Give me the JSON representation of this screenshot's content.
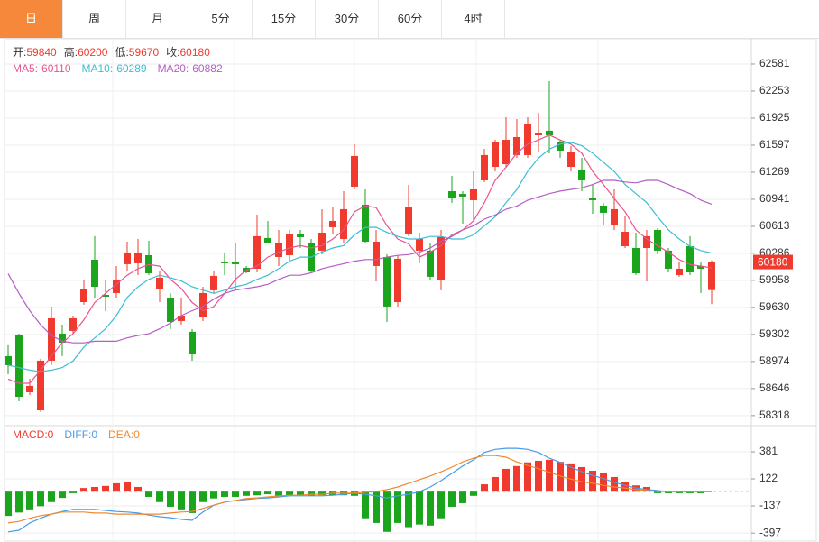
{
  "tabs": [
    "日",
    "周",
    "月",
    "5分",
    "15分",
    "30分",
    "60分",
    "4时"
  ],
  "active_tab": 0,
  "chart_data": [
    {
      "type": "candlestick",
      "info_labels": [
        "开:",
        "高:",
        "低:",
        "收:"
      ],
      "open": [
        59039,
        59290,
        58601,
        58382,
        58984,
        59312,
        59345,
        59694,
        60208,
        59782,
        59804,
        60154,
        60165,
        60263,
        59858,
        59749,
        59465,
        59334,
        59509,
        59837,
        60186,
        60186,
        60110,
        60099,
        60471,
        60241,
        60263,
        60525,
        60405,
        60318,
        60602,
        60460,
        61094,
        60875,
        60132,
        60241,
        59694,
        60514,
        60318,
        60318,
        59957,
        61039,
        61006,
        60930,
        61170,
        61334,
        61367,
        61477,
        61477,
        61717,
        61772,
        61640,
        61334,
        61302,
        60952,
        60864,
        60624,
        60372,
        60350,
        60350,
        60569,
        60318,
        60022,
        60372,
        60132,
        59840
      ],
      "high": [
        59170,
        59312,
        58765,
        59006,
        59640,
        59421,
        59530,
        59968,
        60493,
        59968,
        60132,
        60427,
        60460,
        60438,
        60077,
        59804,
        59749,
        59367,
        59880,
        60077,
        60296,
        60405,
        60132,
        60755,
        60678,
        60569,
        60569,
        60569,
        60460,
        60821,
        60842,
        61039,
        61608,
        61061,
        60569,
        60274,
        60263,
        61116,
        60536,
        60405,
        60569,
        61225,
        61039,
        61280,
        61553,
        61662,
        61936,
        61914,
        61936,
        61990,
        62373,
        61662,
        61586,
        61444,
        61116,
        60897,
        61061,
        60733,
        60536,
        60569,
        60591,
        60350,
        60186,
        60493,
        60186,
        60200
      ],
      "low": [
        58820,
        58492,
        58568,
        58361,
        58929,
        59039,
        59312,
        59662,
        59749,
        59585,
        59749,
        60077,
        60022,
        60022,
        59694,
        59367,
        59421,
        58984,
        59465,
        59804,
        60022,
        59858,
        60044,
        60055,
        60405,
        60132,
        60186,
        60350,
        60055,
        60274,
        60514,
        60405,
        61061,
        60405,
        59946,
        59454,
        59640,
        60493,
        60165,
        59968,
        59837,
        60897,
        60646,
        60678,
        61149,
        61280,
        61334,
        61444,
        61444,
        61520,
        61498,
        61444,
        61280,
        61039,
        60766,
        60624,
        60569,
        60350,
        60022,
        59946,
        60274,
        60055,
        60001,
        60022,
        59804,
        59670
      ],
      "close": [
        58929,
        58546,
        58678,
        58984,
        59498,
        59202,
        59498,
        59858,
        59880,
        59760,
        59968,
        60296,
        60296,
        60044,
        59990,
        59454,
        59530,
        59071,
        59804,
        60012,
        60165,
        60154,
        60055,
        60493,
        60416,
        60405,
        60514,
        60482,
        60077,
        60536,
        60678,
        60821,
        61466,
        60427,
        60427,
        59640,
        60219,
        60842,
        60460,
        60001,
        60482,
        60952,
        60974,
        61061,
        61477,
        61630,
        61662,
        61695,
        61848,
        61739,
        61717,
        61531,
        61520,
        61170,
        60930,
        60777,
        60821,
        60547,
        60044,
        60493,
        60318,
        60099,
        60099,
        60055,
        60099,
        60180
      ],
      "up_color": "#f03a2e",
      "down_color": "#1aa51c",
      "info_label_color": "#333333",
      "series": [
        {
          "name": "MA5:",
          "color": "#e8548f",
          "values": [
            58760,
            58710,
            58710,
            58870,
            59040,
            59200,
            59310,
            59480,
            59690,
            59800,
            59910,
            60020,
            60100,
            60150,
            60130,
            59970,
            59860,
            59690,
            59590,
            59640,
            59800,
            59970,
            60080,
            60130,
            60240,
            60300,
            60350,
            60380,
            60350,
            60380,
            60460,
            60570,
            60790,
            60860,
            60840,
            60620,
            60460,
            60400,
            60240,
            60300,
            60380,
            60510,
            60570,
            60680,
            60900,
            61170,
            61330,
            61500,
            61610,
            61660,
            61720,
            61660,
            61610,
            61500,
            61280,
            61120,
            60950,
            60790,
            60570,
            60460,
            60380,
            60300,
            60210,
            60150,
            60130,
            60110
          ]
        },
        {
          "name": "MA10:",
          "color": "#3cbdd4",
          "values": [
            58930,
            58900,
            58870,
            58850,
            58870,
            58900,
            58980,
            59150,
            59260,
            59370,
            59530,
            59750,
            59880,
            59970,
            60020,
            59990,
            59950,
            59880,
            59840,
            59800,
            59840,
            59880,
            59910,
            59970,
            60020,
            60100,
            60190,
            60240,
            60240,
            60300,
            60350,
            60380,
            60510,
            60600,
            60600,
            60540,
            60490,
            60460,
            60460,
            60490,
            60490,
            60460,
            60460,
            60510,
            60620,
            60730,
            60900,
            61060,
            61280,
            61440,
            61550,
            61610,
            61630,
            61590,
            61500,
            61390,
            61280,
            61120,
            61010,
            60900,
            60730,
            60570,
            60460,
            60370,
            60320,
            60289
          ]
        },
        {
          "name": "MA20:",
          "color": "#b45ec4",
          "values": [
            60040,
            59800,
            59590,
            59420,
            59290,
            59220,
            59200,
            59200,
            59220,
            59220,
            59220,
            59260,
            59290,
            59310,
            59370,
            59440,
            59530,
            59590,
            59640,
            59730,
            59800,
            59840,
            59860,
            59880,
            59910,
            59970,
            60020,
            60020,
            60050,
            60100,
            60130,
            60160,
            60190,
            60210,
            60210,
            60240,
            60260,
            60270,
            60300,
            60350,
            60430,
            60490,
            60570,
            60620,
            60700,
            60750,
            60820,
            60860,
            60930,
            60970,
            61010,
            61040,
            61060,
            61080,
            61120,
            61170,
            61170,
            61150,
            61140,
            61170,
            61170,
            61120,
            61060,
            61010,
            60930,
            60882
          ]
        }
      ],
      "ylim": [
        58218,
        62865
      ],
      "yticks": [
        62581,
        62253,
        61925,
        61597,
        61269,
        60941,
        60613,
        60286,
        59958,
        59630,
        59302,
        58974,
        58646,
        58318
      ],
      "grid": true
    },
    {
      "type": "macd",
      "bar_name": "MACD:",
      "values": [
        -233,
        -200,
        -170,
        -140,
        -100,
        -60,
        -15,
        35,
        45,
        55,
        80,
        95,
        45,
        -50,
        -100,
        -145,
        -170,
        -205,
        -100,
        -65,
        -50,
        -50,
        -40,
        -35,
        -25,
        -40,
        -40,
        -40,
        -40,
        -35,
        -35,
        -35,
        -40,
        -255,
        -300,
        -385,
        -300,
        -340,
        -315,
        -325,
        -255,
        -145,
        -110,
        -40,
        70,
        140,
        218,
        245,
        280,
        295,
        305,
        285,
        270,
        235,
        200,
        175,
        140,
        90,
        60,
        45,
        -15,
        -15,
        -15,
        -15,
        -15,
        0
      ],
      "up_color": "#f03a2e",
      "down_color": "#1aa51c",
      "series": [
        {
          "name": "DIFF:",
          "color": "#4a9be6",
          "values": [
            -385,
            -370,
            -300,
            -255,
            -215,
            -190,
            -170,
            -170,
            -170,
            -180,
            -190,
            -195,
            -205,
            -225,
            -240,
            -250,
            -265,
            -275,
            -195,
            -130,
            -100,
            -85,
            -75,
            -65,
            -60,
            -50,
            -40,
            -40,
            -40,
            -40,
            -35,
            -25,
            -15,
            -25,
            -40,
            -60,
            -40,
            -25,
            0,
            45,
            105,
            175,
            245,
            305,
            375,
            405,
            415,
            415,
            405,
            375,
            320,
            280,
            235,
            190,
            155,
            125,
            90,
            60,
            35,
            20,
            10,
            0,
            0,
            0,
            0,
            0
          ]
        },
        {
          "name": "DEA:",
          "color": "#f0892e",
          "values": [
            -300,
            -285,
            -255,
            -230,
            -215,
            -195,
            -195,
            -195,
            -205,
            -205,
            -215,
            -215,
            -215,
            -215,
            -215,
            -205,
            -195,
            -190,
            -160,
            -130,
            -100,
            -85,
            -65,
            -60,
            -50,
            -40,
            -35,
            -35,
            -25,
            -25,
            -15,
            -15,
            -15,
            -5,
            0,
            20,
            45,
            80,
            115,
            150,
            190,
            235,
            285,
            320,
            345,
            345,
            330,
            285,
            250,
            220,
            185,
            150,
            120,
            95,
            80,
            60,
            45,
            35,
            20,
            10,
            0,
            0,
            0,
            0,
            0,
            0
          ]
        }
      ],
      "ylim": [
        -482,
        580
      ],
      "yticks": [
        381,
        122,
        -137,
        -397
      ],
      "grid": true
    }
  ]
}
